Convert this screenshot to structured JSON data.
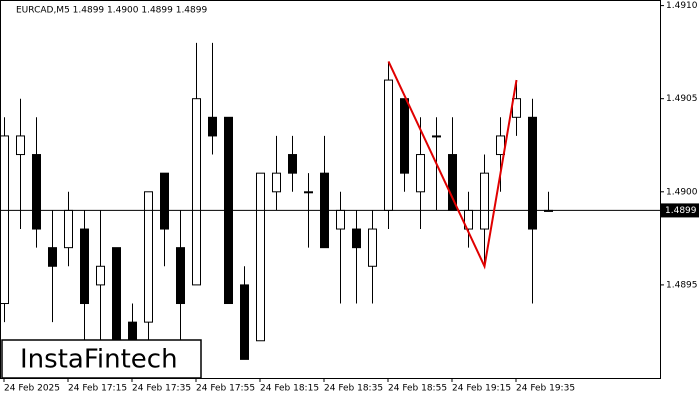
{
  "chart_data": {
    "type": "candlestick",
    "title": "EURCAD,M5  1.4899 1.4900 1.4899 1.4899",
    "categories": [
      "24 Feb 2025",
      null,
      null,
      null,
      "24 Feb 17:15",
      null,
      null,
      null,
      "24 Feb 17:35",
      null,
      null,
      null,
      "24 Feb 17:55",
      null,
      null,
      null,
      "24 Feb 18:15",
      null,
      null,
      null,
      "24 Feb 18:35",
      null,
      null,
      null,
      "24 Feb 18:55",
      null,
      null,
      null,
      "24 Feb 19:15",
      null,
      null,
      null,
      "24 Feb 19:35",
      null,
      null
    ],
    "open": [
      1.4894,
      1.4902,
      1.4902,
      1.4897,
      1.4897,
      1.4898,
      1.4895,
      1.4897,
      1.4893,
      1.4893,
      1.4901,
      1.4897,
      1.4895,
      1.4904,
      1.4904,
      1.4895,
      1.4892,
      1.49,
      1.4902,
      1.49,
      1.4901,
      1.4898,
      1.4898,
      1.4896,
      1.4899,
      1.4905,
      1.49,
      1.4903,
      1.4902,
      1.4898,
      1.4898,
      1.4902,
      1.4904,
      1.4904,
      1.4899
    ],
    "high": [
      1.4904,
      1.4905,
      1.4904,
      1.4899,
      1.49,
      1.4899,
      1.4899,
      1.4897,
      1.4894,
      1.49,
      1.4901,
      1.4899,
      1.4908,
      1.4908,
      1.4904,
      1.4896,
      1.4901,
      1.4903,
      1.4903,
      1.4901,
      1.4903,
      1.49,
      1.4899,
      1.4899,
      1.4907,
      1.4905,
      1.4904,
      1.4904,
      1.4904,
      1.49,
      1.4902,
      1.4904,
      1.4906,
      1.4905,
      1.49
    ],
    "low": [
      1.4893,
      1.4898,
      1.4897,
      1.4893,
      1.4896,
      1.4892,
      1.4892,
      1.489,
      1.489,
      1.4892,
      1.4896,
      1.4892,
      1.4895,
      1.4902,
      1.4894,
      1.4891,
      1.4892,
      1.4899,
      1.49,
      1.4897,
      1.4897,
      1.4894,
      1.4894,
      1.4894,
      1.4898,
      1.49,
      1.4898,
      1.4899,
      1.4899,
      1.4897,
      1.4896,
      1.49,
      1.4903,
      1.4894,
      1.4899
    ],
    "close": [
      1.4903,
      1.4903,
      1.4898,
      1.4896,
      1.4899,
      1.4894,
      1.4896,
      1.489,
      1.4892,
      1.49,
      1.4898,
      1.4894,
      1.4905,
      1.4903,
      1.4894,
      1.4891,
      1.4901,
      1.4901,
      1.4901,
      1.49,
      1.4897,
      1.4899,
      1.4897,
      1.4898,
      1.4906,
      1.4901,
      1.4902,
      1.4903,
      1.4899,
      1.4899,
      1.4901,
      1.4903,
      1.4905,
      1.4898,
      1.4899
    ],
    "ylim": [
      1.489,
      1.49103
    ],
    "yticks": [
      {
        "value": 1.491,
        "label": "1.4910"
      },
      1.4905,
      {
        "value": 1.49,
        "label": "1.4900"
      },
      1.4895
    ],
    "last_price": 1.4899,
    "pattern": {
      "color": "#e00000",
      "index": [
        24,
        30,
        32
      ],
      "price": [
        1.4907,
        1.4896,
        1.4906
      ]
    },
    "watermark": "InstaFintech"
  }
}
